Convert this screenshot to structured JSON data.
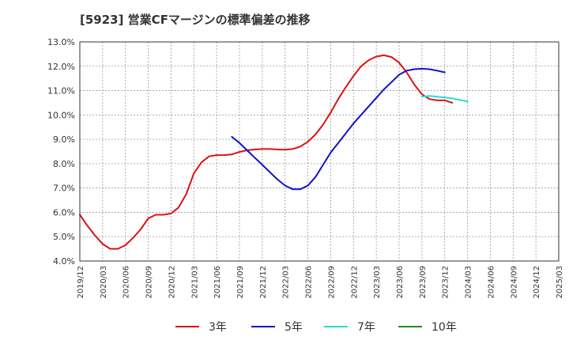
{
  "chart_data": {
    "type": "line",
    "title": "[5923]  営業CFマージンの標準偏差の推移",
    "xlabel": "",
    "ylabel": "",
    "ylim": [
      4.0,
      13.0
    ],
    "y_ticks": [
      "4.0%",
      "5.0%",
      "6.0%",
      "7.0%",
      "8.0%",
      "9.0%",
      "10.0%",
      "11.0%",
      "12.0%",
      "13.0%"
    ],
    "x_ticks": [
      "2019/12",
      "2020/03",
      "2020/06",
      "2020/09",
      "2020/12",
      "2021/03",
      "2021/06",
      "2021/09",
      "2021/12",
      "2022/03",
      "2022/06",
      "2022/09",
      "2022/12",
      "2023/03",
      "2023/06",
      "2023/09",
      "2023/12",
      "2024/03",
      "2024/06",
      "2024/09",
      "2024/12",
      "2025/03"
    ],
    "x_start": "2019/12",
    "grid": true,
    "legend_position": "bottom",
    "series": [
      {
        "name": "3年",
        "color": "#dd1111",
        "start": "2019/12",
        "values": [
          5.9,
          5.45,
          5.05,
          4.7,
          4.5,
          4.5,
          4.65,
          4.95,
          5.3,
          5.75,
          5.9,
          5.9,
          5.95,
          6.2,
          6.75,
          7.6,
          8.05,
          8.3,
          8.35,
          8.35,
          8.38,
          8.48,
          8.55,
          8.58,
          8.6,
          8.6,
          8.58,
          8.57,
          8.6,
          8.7,
          8.9,
          9.2,
          9.6,
          10.1,
          10.65,
          11.15,
          11.6,
          12.0,
          12.25,
          12.4,
          12.45,
          12.38,
          12.15,
          11.75,
          11.25,
          10.85,
          10.65,
          10.6,
          10.6,
          10.5
        ]
      },
      {
        "name": "5年",
        "color": "#1111cc",
        "start": "2021/08",
        "values": [
          9.1,
          8.85,
          8.55,
          8.25,
          7.95,
          7.65,
          7.35,
          7.1,
          6.95,
          6.95,
          7.1,
          7.45,
          7.95,
          8.45,
          8.85,
          9.25,
          9.65,
          10.0,
          10.35,
          10.7,
          11.05,
          11.35,
          11.65,
          11.82,
          11.88,
          11.9,
          11.88,
          11.82,
          11.75
        ]
      },
      {
        "name": "7年",
        "color": "#22dddd",
        "start": "2023/09",
        "values": [
          10.75,
          10.78,
          10.75,
          10.72,
          10.68,
          10.62,
          10.55
        ]
      },
      {
        "name": "10年",
        "color": "#228822",
        "start": "2025/03",
        "values": []
      }
    ]
  }
}
